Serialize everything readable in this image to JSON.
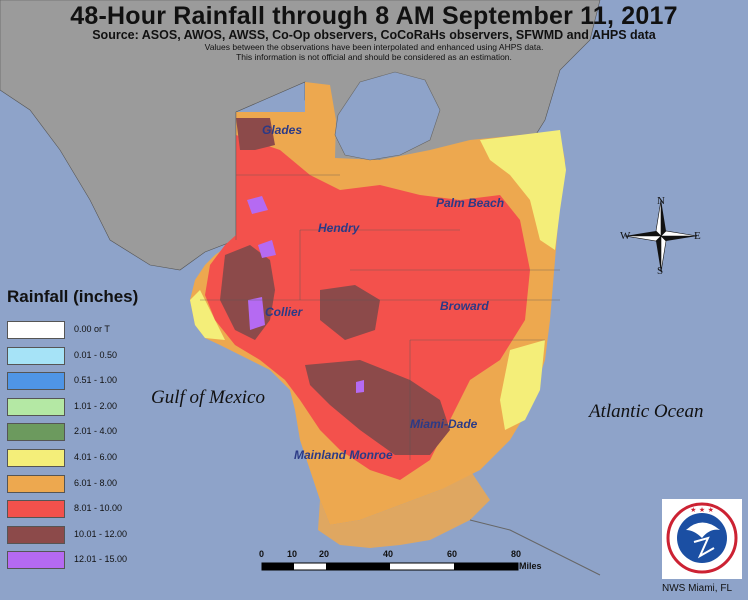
{
  "title": "48-Hour Rainfall through 8 AM September 11, 2017",
  "source": "Source: ASOS, AWOS, AWSS, Co-Op observers, CoCoRaHs observers, SFWMD and AHPS data",
  "note_line1": "Values between the observations have been interpolated and enhanced using AHPS data.",
  "note_line2": "This information is not official and should be considered as an estimation.",
  "legend": {
    "title": "Rainfall (inches)",
    "items": [
      {
        "label": "0.00 or T",
        "color": "#ffffff"
      },
      {
        "label": "0.01 - 0.50",
        "color": "#a6e3f7"
      },
      {
        "label": "0.51 - 1.00",
        "color": "#4f95e6"
      },
      {
        "label": "1.01 - 2.00",
        "color": "#b4e8a4"
      },
      {
        "label": "2.01 - 4.00",
        "color": "#6c9a5e"
      },
      {
        "label": "4.01 - 6.00",
        "color": "#f4ee79"
      },
      {
        "label": "6.01 - 8.00",
        "color": "#eda84f"
      },
      {
        "label": "8.01 - 10.00",
        "color": "#f3514c"
      },
      {
        "label": "10.01 - 12.00",
        "color": "#8c4a4a"
      },
      {
        "label": "12.01 - 15.00",
        "color": "#b56af2"
      }
    ]
  },
  "counties": {
    "glades": "Glades",
    "hendry": "Hendry",
    "palm_beach": "Palm Beach",
    "collier": "Collier",
    "broward": "Broward",
    "miami_dade": "Miami-Dade",
    "mainland_monroe": "Mainland Monroe"
  },
  "water": {
    "gulf": "Gulf of Mexico",
    "atlantic": "Atlantic Ocean"
  },
  "compass": {
    "n": "N",
    "s": "S",
    "e": "E",
    "w": "W"
  },
  "scale_bar": {
    "ticks": [
      "0",
      "10",
      "20",
      "40",
      "60",
      "80"
    ],
    "units": "Miles"
  },
  "credit": "NWS Miami, FL",
  "colors": {
    "ocean": "#8ea3c9",
    "land_outside": "#9b9b9b",
    "lake": "#8ea3c9"
  }
}
